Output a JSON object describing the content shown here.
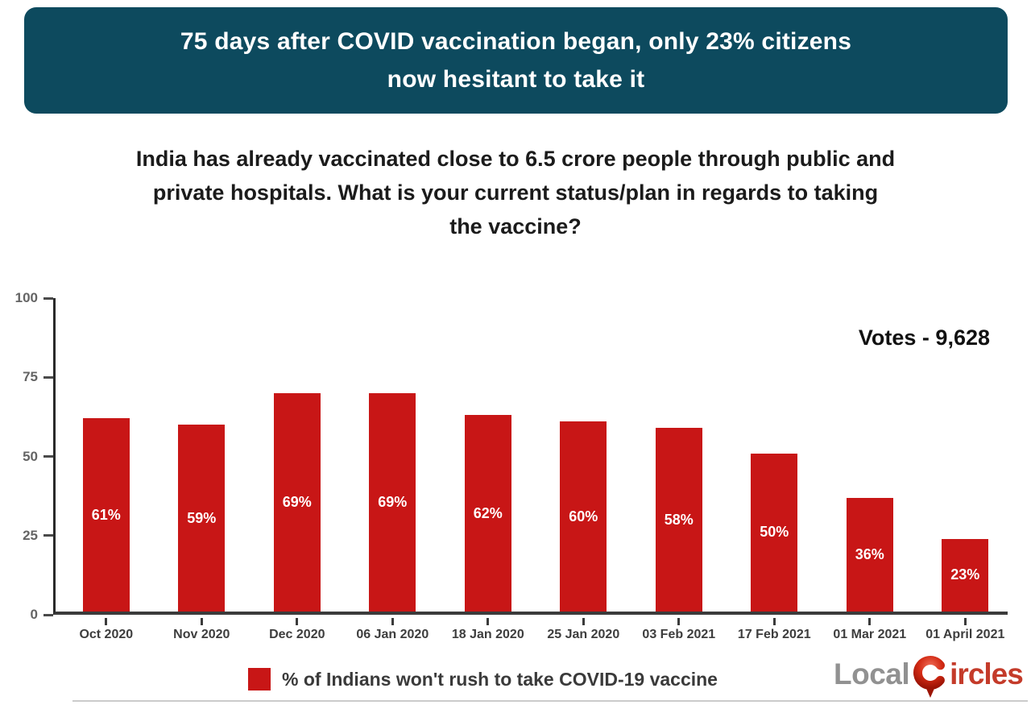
{
  "header": {
    "title_lines": [
      "75 days after COVID vaccination began, only 23% citizens",
      "now hesitant to take it"
    ],
    "bg_color": "#0d4a5e",
    "text_color": "#ffffff"
  },
  "question": {
    "lines": [
      "India has already vaccinated close to 6.5 crore people through public and",
      "private hospitals. What is your current status/plan in regards to taking",
      "the vaccine?"
    ]
  },
  "chart_data": {
    "type": "bar",
    "categories": [
      "Oct 2020",
      "Nov 2020",
      "Dec 2020",
      "06 Jan 2020",
      "18 Jan 2020",
      "25 Jan 2020",
      "03 Feb 2021",
      "17 Feb 2021",
      "01 Mar 2021",
      "01 April 2021"
    ],
    "values": [
      61,
      59,
      69,
      69,
      62,
      60,
      58,
      50,
      36,
      23
    ],
    "bar_labels": [
      "61%",
      "59%",
      "69%",
      "69%",
      "62%",
      "60%",
      "58%",
      "50%",
      "36%",
      "23%"
    ],
    "title": "",
    "xlabel": "",
    "ylabel": "",
    "ylim": [
      0,
      100
    ],
    "yticks": [
      0,
      25,
      50,
      75,
      100
    ],
    "grid": false,
    "bar_color": "#c81616",
    "bar_label_color": "#ffffff",
    "votes_label": "Votes - 9,628",
    "legend": "% of Indians won't rush to take COVID-19 vaccine",
    "legend_position": "bottom"
  },
  "logo": {
    "part1": "Local",
    "part2": "ircles",
    "pin_color": "#c02010",
    "gray_color": "#919191"
  }
}
